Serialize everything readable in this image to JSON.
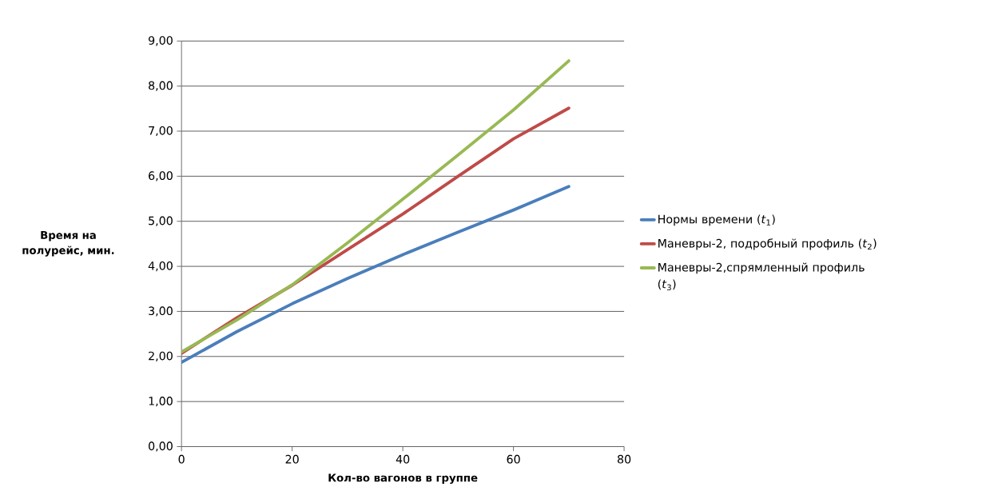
{
  "chart_data": {
    "type": "line",
    "xlabel": "Кол-во вагонов в группе",
    "ylabel": "Время на полурейс, мин.",
    "x": [
      0,
      10,
      20,
      30,
      40,
      50,
      60,
      70
    ],
    "series": [
      {
        "name": "Нормы времени (*t*$_{1}$)",
        "color": "#4a7ebb",
        "values": [
          1.87,
          2.55,
          3.17,
          3.73,
          4.26,
          4.76,
          5.25,
          5.77
        ]
      },
      {
        "name": "Маневры-2, подробный профиль (*t*$_{2}$)",
        "color": "#be4b48",
        "values": [
          2.07,
          2.86,
          3.58,
          4.37,
          5.16,
          6.0,
          6.83,
          7.51
        ]
      },
      {
        "name": "Маневры-2,спрямленный профиль (*t*$_{3}$)",
        "color": "#98b954",
        "values": [
          2.1,
          2.81,
          3.59,
          4.52,
          5.49,
          6.47,
          7.47,
          8.56
        ]
      }
    ],
    "xlim": [
      0,
      80
    ],
    "xticks": [
      0,
      20,
      40,
      60,
      80
    ],
    "ylim": [
      0,
      9
    ],
    "yticks": [
      {
        "value": 0,
        "label": "0,00"
      },
      {
        "value": 1,
        "label": "1,00"
      },
      {
        "value": 2,
        "label": "2,00"
      },
      {
        "value": 3,
        "label": "3,00"
      },
      {
        "value": 4,
        "label": "4,00"
      },
      {
        "value": 5,
        "label": "5,00"
      },
      {
        "value": 6,
        "label": "6,00"
      },
      {
        "value": 7,
        "label": "7,00"
      },
      {
        "value": 8,
        "label": "8,00"
      },
      {
        "value": 9,
        "label": "9,00"
      }
    ],
    "grid": "y",
    "legend": "right",
    "marker": "none",
    "line_style": "solid"
  }
}
